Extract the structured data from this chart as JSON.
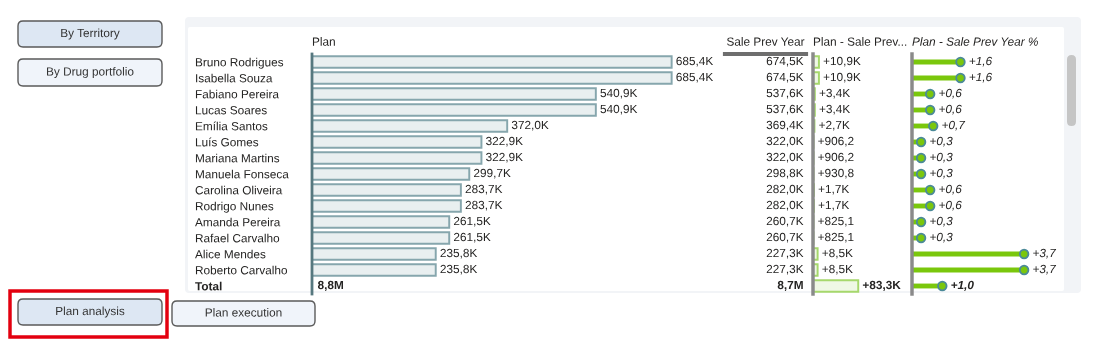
{
  "chart_data": [
    {
      "type": "other",
      "annotations": [
        "By Territory",
        "By Drug portfolio"
      ]
    },
    {
      "type": "bar",
      "orientation": "horizontal",
      "title": "Plan",
      "categories": [
        "Bruno Rodrigues",
        "Isabella Souza",
        "Fabiano Pereira",
        "Lucas Soares",
        "Emília Santos",
        "Luís Gomes",
        "Mariana Martins",
        "Manuela Fonseca",
        "Carolina Oliveira",
        "Rodrigo Nunes",
        "Amanda Pereira",
        "Rafael Carvalho",
        "Alice Mendes",
        "Roberto Carvalho",
        "Total"
      ],
      "values": [
        685.4,
        685.4,
        540.9,
        540.9,
        372.0,
        322.9,
        322.9,
        299.7,
        283.7,
        283.7,
        261.5,
        261.5,
        235.8,
        235.8,
        null
      ],
      "value_labels": [
        "685,4K",
        "685,4K",
        "540,9K",
        "540,9K",
        "372,0K",
        "322,9K",
        "322,9K",
        "299,7K",
        "283,7K",
        "283,7K",
        "261,5K",
        "261,5K",
        "235,8K",
        "235,8K",
        null
      ],
      "color": "#86a6ad",
      "tick_labels": "y",
      "annotations": [
        "8,8M"
      ]
    },
    {
      "type": "other",
      "title": "Sale Prev Year",
      "annotations": [
        "674,5K",
        "674,5K",
        "537,6K",
        "537,6K",
        "369,4K",
        "322,0K",
        "322,0K",
        "298,8K",
        "282,0K",
        "282,0K",
        "260,7K",
        "260,7K",
        "227,3K",
        "227,3K",
        "8,7M"
      ]
    },
    {
      "type": "bar",
      "orientation": "horizontal",
      "title": "Plan - Sale Prev...",
      "categories": [
        null,
        null,
        null,
        null,
        null,
        null,
        null,
        null,
        null,
        null,
        null,
        null,
        null,
        null,
        null
      ],
      "values": [
        10900,
        10900,
        3400,
        3400,
        2700,
        906.2,
        906.2,
        930.8,
        1700,
        1700,
        825.1,
        825.1,
        8500,
        8500,
        83300
      ],
      "value_labels": [
        "+10,9K",
        "+10,9K",
        "+3,4K",
        "+3,4K",
        "+2,7K",
        "+906,2",
        "+906,2",
        "+930,8",
        "+1,7K",
        "+1,7K",
        "+825,1",
        "+825,1",
        "+8,5K",
        "+8,5K",
        "+83,3K"
      ],
      "color": "#a6d86c"
    },
    {
      "type": "lollipop",
      "orientation": "horizontal",
      "title": "Plan - Sale Prev Year %",
      "categories": [
        null,
        null,
        null,
        null,
        null,
        null,
        null,
        null,
        null,
        null,
        null,
        null,
        null,
        null,
        null
      ],
      "values": [
        1.6,
        1.6,
        0.6,
        0.6,
        0.7,
        0.3,
        0.3,
        0.3,
        0.6,
        0.6,
        0.3,
        0.3,
        3.7,
        3.7,
        1.0
      ],
      "value_labels": [
        "+1,6",
        "+1,6",
        "+0,6",
        "+0,6",
        "+0,7",
        "+0,3",
        "+0,3",
        "+0,3",
        "+0,6",
        "+0,6",
        "+0,3",
        "+0,3",
        "+3,7",
        "+3,7",
        "+1,0"
      ],
      "color": "#7ac70c",
      "marker": "circle"
    },
    {
      "type": "other",
      "annotations": [
        "Plan analysis",
        "Plan execution"
      ]
    }
  ]
}
